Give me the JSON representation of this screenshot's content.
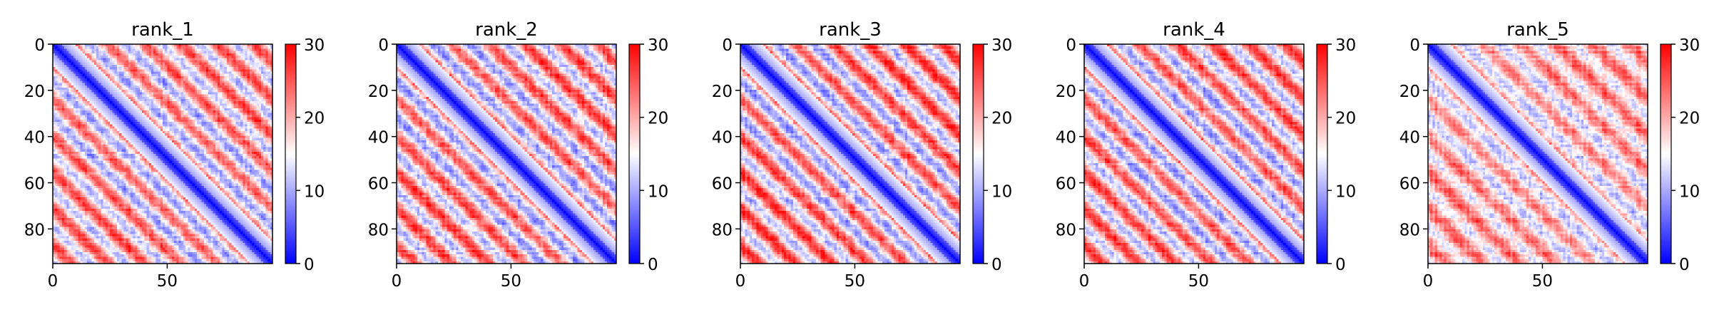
{
  "chart_data": [
    {
      "type": "heatmap",
      "title": "rank_1",
      "xlabel": "",
      "ylabel": "",
      "xlim": [
        0,
        96
      ],
      "ylim": [
        95,
        0
      ],
      "x_ticks": [
        0,
        50
      ],
      "y_ticks": [
        0,
        20,
        40,
        60,
        80
      ],
      "colorbar": {
        "min": 0,
        "max": 30,
        "ticks": [
          0,
          10,
          20,
          30
        ],
        "colormap": "bwr"
      },
      "size": 96,
      "diagonal_band": "blue",
      "off_diagonal_pattern": "alternating red and blue blocks with period of about 16 residues",
      "seed": 11,
      "repeat_period": 16,
      "contrast": 1.0
    },
    {
      "type": "heatmap",
      "title": "rank_2",
      "xlabel": "",
      "ylabel": "",
      "xlim": [
        0,
        96
      ],
      "ylim": [
        95,
        0
      ],
      "x_ticks": [
        0,
        50
      ],
      "y_ticks": [
        0,
        20,
        40,
        60,
        80
      ],
      "colorbar": {
        "min": 0,
        "max": 30,
        "ticks": [
          0,
          10,
          20,
          30
        ],
        "colormap": "bwr"
      },
      "size": 96,
      "diagonal_band": "blue",
      "off_diagonal_pattern": "alternating red and blue blocks with period of about 16 residues",
      "seed": 23,
      "repeat_period": 16,
      "contrast": 1.05
    },
    {
      "type": "heatmap",
      "title": "rank_3",
      "xlabel": "",
      "ylabel": "",
      "xlim": [
        0,
        96
      ],
      "ylim": [
        95,
        0
      ],
      "x_ticks": [
        0,
        50
      ],
      "y_ticks": [
        0,
        20,
        40,
        60,
        80
      ],
      "colorbar": {
        "min": 0,
        "max": 30,
        "ticks": [
          0,
          10,
          20,
          30
        ],
        "colormap": "bwr"
      },
      "size": 96,
      "diagonal_band": "blue",
      "off_diagonal_pattern": "alternating red and blue blocks with period of about 16 residues",
      "seed": 37,
      "repeat_period": 16,
      "contrast": 1.1
    },
    {
      "type": "heatmap",
      "title": "rank_4",
      "xlabel": "",
      "ylabel": "",
      "xlim": [
        0,
        96
      ],
      "ylim": [
        95,
        0
      ],
      "x_ticks": [
        0,
        50
      ],
      "y_ticks": [
        0,
        20,
        40,
        60,
        80
      ],
      "colorbar": {
        "min": 0,
        "max": 30,
        "ticks": [
          0,
          10,
          20,
          30
        ],
        "colormap": "bwr"
      },
      "size": 96,
      "diagonal_band": "blue",
      "off_diagonal_pattern": "alternating red and blue blocks with period of about 16 residues",
      "seed": 41,
      "repeat_period": 16,
      "contrast": 1.05
    },
    {
      "type": "heatmap",
      "title": "rank_5",
      "xlabel": "",
      "ylabel": "",
      "xlim": [
        0,
        96
      ],
      "ylim": [
        95,
        0
      ],
      "x_ticks": [
        0,
        50
      ],
      "y_ticks": [
        0,
        20,
        40,
        60,
        80
      ],
      "colorbar": {
        "min": 0,
        "max": 30,
        "ticks": [
          0,
          10,
          20,
          30
        ],
        "colormap": "bwr"
      },
      "size": 96,
      "diagonal_band": "blue",
      "off_diagonal_pattern": "red dominated with sparse blue patches",
      "seed": 53,
      "repeat_period": 16,
      "contrast": 0.7
    }
  ],
  "colors": {
    "low": "#0000ff",
    "mid": "#ffffff",
    "high": "#ff0000",
    "axis": "#000000"
  }
}
